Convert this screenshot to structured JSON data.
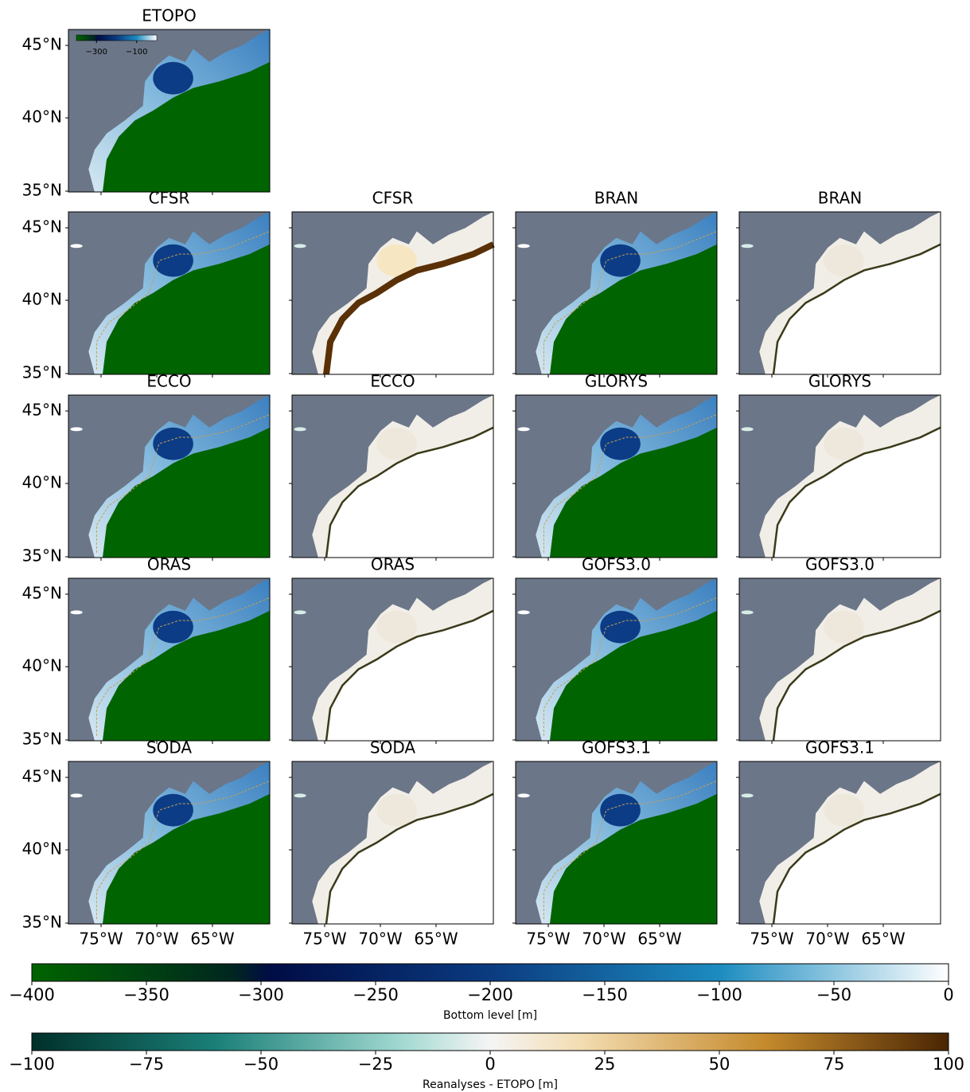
{
  "panels": [
    {
      "title": "ETOPO"
    },
    {
      "title": "CFSR"
    },
    {
      "title": "CFSR"
    },
    {
      "title": "BRAN"
    },
    {
      "title": "BRAN"
    },
    {
      "title": "ECCO"
    },
    {
      "title": "ECCO"
    },
    {
      "title": "GLORYS"
    },
    {
      "title": "GLORYS"
    },
    {
      "title": "ORAS"
    },
    {
      "title": "ORAS"
    },
    {
      "title": "GOFS3.0"
    },
    {
      "title": "GOFS3.0"
    },
    {
      "title": "SODA"
    },
    {
      "title": "SODA"
    },
    {
      "title": "GOFS3.1"
    },
    {
      "title": "GOFS3.1"
    }
  ],
  "lat_ticks": [
    "45°N",
    "40°N",
    "35°N"
  ],
  "lon_ticks": [
    "75°W",
    "70°W",
    "65°W"
  ],
  "inset_colorbar": {
    "lim": [
      -400,
      0
    ],
    "ticks": [
      {
        "value": -300,
        "label": "−300"
      },
      {
        "value": -100,
        "label": "−100"
      }
    ]
  },
  "colorbars": [
    {
      "label": "Bottom level [m]",
      "lim": [
        -400,
        0
      ],
      "ticks": [
        {
          "value": -400,
          "label": "−400"
        },
        {
          "value": -350,
          "label": "−350"
        },
        {
          "value": -300,
          "label": "−300"
        },
        {
          "value": -250,
          "label": "−250"
        },
        {
          "value": -200,
          "label": "−200"
        },
        {
          "value": -150,
          "label": "−150"
        },
        {
          "value": -100,
          "label": "−100"
        },
        {
          "value": -50,
          "label": "−50"
        },
        0
      ]
    },
    {
      "label": "Reanalyses - ETOPO [m]",
      "lim": [
        -100,
        100
      ],
      "ticks": [
        {
          "value": -100,
          "label": "−100"
        },
        {
          "value": -75,
          "label": "−75"
        },
        {
          "value": -50,
          "label": "−50"
        },
        {
          "value": -25,
          "label": "−25"
        },
        0,
        25,
        50,
        75,
        100
      ]
    }
  ]
}
